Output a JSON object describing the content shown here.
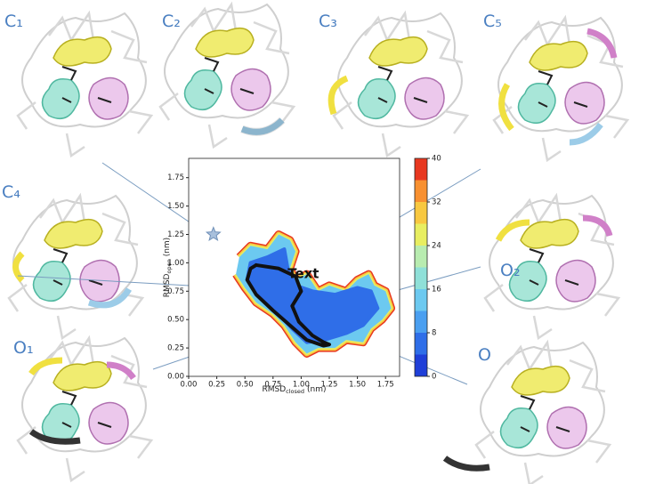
{
  "panels": [
    {
      "label": "C₁"
    },
    {
      "label": "C₂"
    },
    {
      "label": "C₃"
    },
    {
      "label": "C₅"
    },
    {
      "label": "C₄"
    },
    {
      "label": "O₂"
    },
    {
      "label": "O₁"
    },
    {
      "label": "O"
    }
  ],
  "chart_data": {
    "type": "contour",
    "xlabel": {
      "text": "RMSD",
      "sub": "closed",
      "unit": "(nm)"
    },
    "ylabel": {
      "text": "RMSD",
      "sub": "open",
      "unit": "(nm)"
    },
    "xlim": [
      0,
      1.875
    ],
    "ylim": [
      0,
      1.92
    ],
    "xticks": [
      {
        "value": 0,
        "label": "0.00"
      },
      {
        "value": 0.25,
        "label": "0.25"
      },
      {
        "value": 0.5,
        "label": "0.50"
      },
      {
        "value": 0.75,
        "label": "0.75"
      },
      {
        "value": 1,
        "label": "1.00"
      },
      {
        "value": 1.25,
        "label": "1.25"
      },
      {
        "value": 1.5,
        "label": "1.50"
      },
      {
        "value": 1.75,
        "label": "1.75"
      }
    ],
    "yticks": [
      {
        "value": 0,
        "label": "0.00"
      },
      {
        "value": 0.25,
        "label": "0.25"
      },
      {
        "value": 0.5,
        "label": "0.50"
      },
      {
        "value": 0.75,
        "label": "0.75"
      },
      {
        "value": 1,
        "label": "1.00"
      },
      {
        "value": 1.25,
        "label": "1.25"
      },
      {
        "value": 1.5,
        "label": "1.50"
      },
      {
        "value": 1.75,
        "label": "1.75"
      }
    ],
    "clim": [
      0,
      40
    ],
    "cticks": [
      0,
      8,
      16,
      24,
      32,
      40
    ],
    "colorbar": {
      "levels": [
        0,
        4,
        8,
        12,
        16,
        20,
        24,
        28,
        32,
        36,
        40
      ],
      "colors": [
        "#1f3fd8",
        "#2f6ee8",
        "#4a9ff0",
        "#6cc9f0",
        "#8fe0d8",
        "#b8ecb0",
        "#e8ee60",
        "#f8c840",
        "#f89030",
        "#e83820"
      ]
    },
    "regions": [
      {
        "level": 14,
        "x": [
          0.45,
          0.55,
          0.7,
          0.8,
          0.9,
          0.95,
          0.9,
          0.95,
          1.05,
          1.15,
          1.25,
          1.4,
          1.5,
          1.6,
          1.65,
          1.75,
          1.8,
          1.72,
          1.62,
          1.55,
          1.4,
          1.3,
          1.15,
          1.05,
          0.95,
          0.85,
          0.75,
          0.6,
          0.5,
          0.42
        ],
        "y": [
          1.05,
          1.15,
          1.12,
          1.25,
          1.2,
          1.1,
          0.95,
          0.85,
          0.9,
          0.75,
          0.8,
          0.75,
          0.85,
          0.9,
          0.8,
          0.75,
          0.6,
          0.5,
          0.42,
          0.3,
          0.32,
          0.25,
          0.25,
          0.2,
          0.3,
          0.45,
          0.55,
          0.65,
          0.78,
          0.9
        ]
      },
      {
        "level": 4,
        "x": [
          0.55,
          0.7,
          0.85,
          0.88,
          0.95,
          1.1,
          1.3,
          1.5,
          1.62,
          1.68,
          1.55,
          1.4,
          1.2,
          1.05,
          0.92,
          0.8,
          0.65,
          0.52
        ],
        "y": [
          1.0,
          1.05,
          1.12,
          0.95,
          0.8,
          0.75,
          0.72,
          0.78,
          0.75,
          0.6,
          0.45,
          0.38,
          0.32,
          0.3,
          0.42,
          0.55,
          0.68,
          0.85
        ]
      }
    ],
    "pathway": {
      "x": [
        0.6,
        0.8,
        0.95,
        1.0,
        0.92,
        0.98,
        1.1,
        1.2,
        1.25,
        1.2,
        1.05,
        0.9,
        0.75,
        0.6,
        0.52,
        0.55,
        0.6
      ],
      "y": [
        0.98,
        0.95,
        0.88,
        0.75,
        0.62,
        0.48,
        0.36,
        0.3,
        0.28,
        0.27,
        0.32,
        0.45,
        0.58,
        0.72,
        0.85,
        0.95,
        0.98
      ]
    },
    "star": {
      "x": 0.22,
      "y": 1.25
    },
    "annotation": {
      "text": "Text",
      "x": 0.88,
      "y": 0.9
    }
  }
}
